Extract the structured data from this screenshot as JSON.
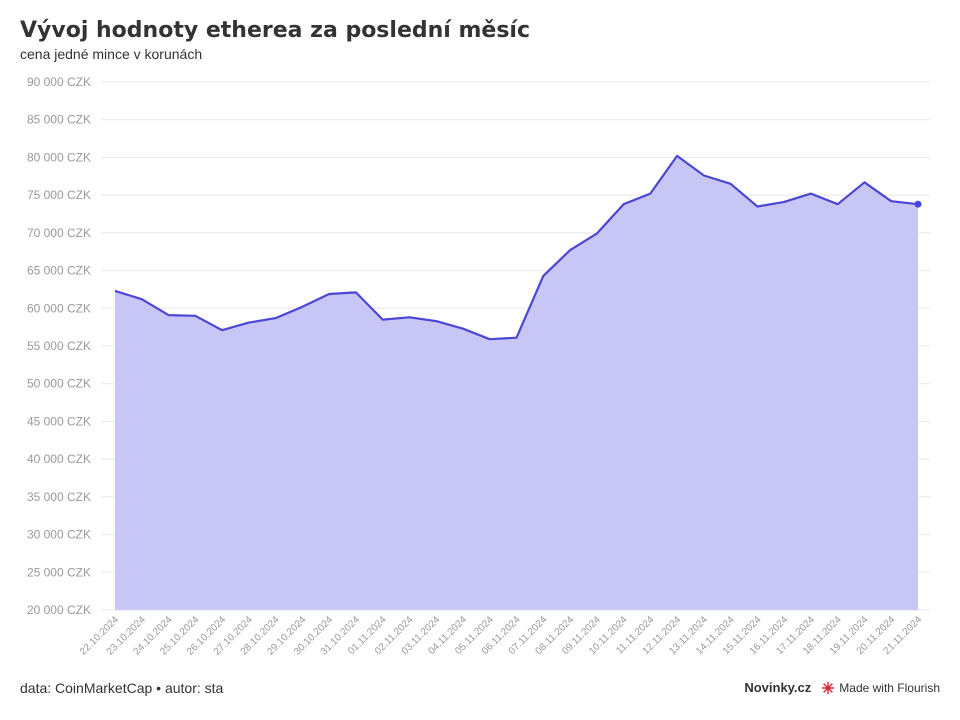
{
  "header": {
    "title": "Vývoj hodnoty etherea za poslední měsíc",
    "subtitle": "cena jedné mince v korunách"
  },
  "footer": {
    "source": "data: CoinMarketCap • autor: sta",
    "brand": "Novinky.cz",
    "flourish_label": "Made with Flourish"
  },
  "colors": {
    "line": "#4b47d6",
    "area": "#c8c6f4",
    "grid": "#e8e8e8",
    "tick_text": "#999999"
  },
  "chart_data": {
    "type": "area",
    "title": "Vývoj hodnoty etherea za poslední měsíc",
    "subtitle": "cena jedné mince v korunách",
    "xlabel": "",
    "ylabel": "",
    "ylim": [
      20000,
      90000
    ],
    "y_ticks": [
      20000,
      25000,
      30000,
      35000,
      40000,
      45000,
      50000,
      55000,
      60000,
      65000,
      70000,
      75000,
      80000,
      85000,
      90000
    ],
    "y_tick_suffix": " CZK",
    "grid": true,
    "legend": "none",
    "x": [
      "22.10.2024",
      "23.10.2024",
      "24.10.2024",
      "25.10.2024",
      "26.10.2024",
      "27.10.2024",
      "28.10.2024",
      "29.10.2024",
      "30.10.2024",
      "31.10.2024",
      "01.11.2024",
      "02.11.2024",
      "03.11.2024",
      "04.11.2024",
      "05.11.2024",
      "06.11.2024",
      "07.11.2024",
      "08.11.2024",
      "09.11.2024",
      "10.11.2024",
      "11.11.2024",
      "12.11.2024",
      "13.11.2024",
      "14.11.2024",
      "15.11.2024",
      "16.11.2024",
      "17.11.2024",
      "18.11.2024",
      "19.11.2024",
      "20.11.2024",
      "21.11.2024"
    ],
    "series": [
      {
        "values": [
          62300,
          61200,
          59100,
          59000,
          57100,
          58100,
          58700,
          60200,
          61900,
          62100,
          58500,
          58800,
          58300,
          57300,
          55900,
          56100,
          64300,
          67700,
          69900,
          73800,
          75200,
          80200,
          77600,
          76500,
          73500,
          74100,
          75200,
          73800,
          76700,
          74200,
          73800
        ]
      }
    ]
  }
}
